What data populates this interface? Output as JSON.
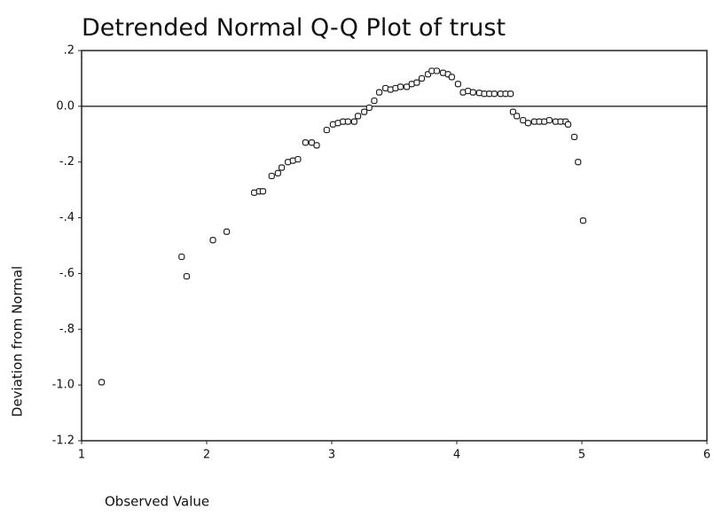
{
  "chart_data": {
    "type": "scatter",
    "title": "Detrended Normal Q-Q Plot of trust",
    "x_label": "Observed Value",
    "y_label": "Deviation from Normal",
    "xlim": [
      1,
      6
    ],
    "xticks": [
      1,
      2,
      3,
      4,
      5,
      6
    ],
    "ylim": [
      -1.2,
      0.2
    ],
    "yticks": [
      {
        "value": -1.2,
        "label": "-1.2"
      },
      {
        "value": -1.0,
        "label": "-1.0"
      },
      {
        "value": -0.8,
        "label": "-.8"
      },
      {
        "value": -0.6,
        "label": "-.6"
      },
      {
        "value": -0.4,
        "label": "-.4"
      },
      {
        "value": -0.2,
        "label": "-.2"
      },
      {
        "value": 0,
        "label": "0.0"
      },
      {
        "value": 0.2,
        "label": ".2"
      }
    ],
    "color": "#222222",
    "x": [
      1.16,
      1.8,
      1.84,
      2.05,
      2.16,
      2.38,
      2.42,
      2.45,
      2.52,
      2.57,
      2.6,
      2.65,
      2.69,
      2.73,
      2.79,
      2.84,
      2.88,
      2.96,
      3.01,
      3.05,
      3.09,
      3.13,
      3.18,
      3.21,
      3.26,
      3.3,
      3.34,
      3.38,
      3.43,
      3.47,
      3.51,
      3.55,
      3.6,
      3.64,
      3.68,
      3.72,
      3.77,
      3.8,
      3.84,
      3.89,
      3.93,
      3.96,
      4.01,
      4.05,
      4.09,
      4.13,
      4.18,
      4.22,
      4.26,
      4.3,
      4.35,
      4.39,
      4.43,
      4.45,
      4.48,
      4.53,
      4.57,
      4.62,
      4.66,
      4.7,
      4.74,
      4.79,
      4.83,
      4.87,
      4.89,
      4.94,
      4.97,
      5.01
    ],
    "y": [
      -0.99,
      -0.54,
      -0.61,
      -0.48,
      -0.45,
      -0.31,
      -0.305,
      -0.305,
      -0.25,
      -0.24,
      -0.22,
      -0.2,
      -0.195,
      -0.19,
      -0.13,
      -0.13,
      -0.14,
      -0.085,
      -0.065,
      -0.06,
      -0.055,
      -0.055,
      -0.055,
      -0.035,
      -0.02,
      -0.005,
      0.02,
      0.05,
      0.065,
      0.06,
      0.065,
      0.07,
      0.07,
      0.08,
      0.085,
      0.1,
      0.115,
      0.127,
      0.127,
      0.12,
      0.115,
      0.105,
      0.08,
      0.05,
      0.055,
      0.05,
      0.048,
      0.045,
      0.045,
      0.045,
      0.045,
      0.045,
      0.045,
      -0.02,
      -0.035,
      -0.05,
      -0.06,
      -0.055,
      -0.055,
      -0.055,
      -0.05,
      -0.055,
      -0.055,
      -0.055,
      -0.065,
      -0.11,
      -0.2,
      -0.41
    ]
  }
}
